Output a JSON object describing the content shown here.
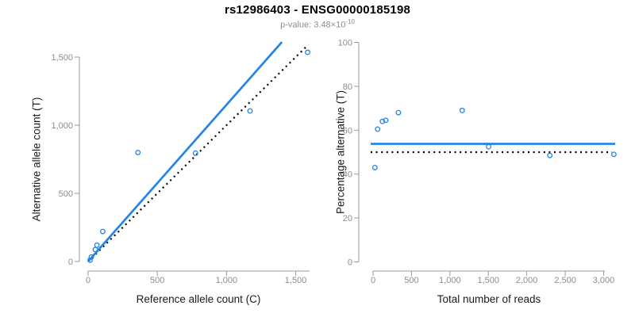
{
  "header": {
    "title": "rs12986403 - ENSG00000185198",
    "pvalue_label": "p-value: 3.48×10",
    "pvalue_exponent": "-10"
  },
  "colors": {
    "accent_blue": "#2585e6",
    "dotted_black": "#000000",
    "axis_gray": "#999999",
    "tick_label_gray": "#8c8c8c",
    "axis_title_dark": "#1a1a1a"
  },
  "chart_data": [
    {
      "type": "scatter",
      "panel": "left",
      "xlabel": "Reference allele count (C)",
      "ylabel": "Alternative allele count (T)",
      "xlim": [
        0,
        1600
      ],
      "ylim": [
        0,
        1600
      ],
      "xticks": [
        0,
        500,
        1000,
        1500
      ],
      "xtick_labels": [
        "0",
        "500",
        "1,000",
        "1,500"
      ],
      "yticks": [
        0,
        500,
        1000,
        1500
      ],
      "ytick_labels": [
        "0",
        "500",
        "1,000",
        "1,500"
      ],
      "grid": false,
      "legend": false,
      "points": [
        [
          14,
          10
        ],
        [
          23,
          33
        ],
        [
          52,
          88
        ],
        [
          64,
          120
        ],
        [
          106,
          220
        ],
        [
          360,
          800
        ],
        [
          776,
          795
        ],
        [
          1170,
          1105
        ],
        [
          1586,
          1535
        ]
      ],
      "lines": [
        {
          "name": "identity-line",
          "style": "dotted",
          "color_key": "dotted_black",
          "x1": 0,
          "y1": 0,
          "x2": 1590,
          "y2": 1590
        },
        {
          "name": "fit-line",
          "style": "solid",
          "color_key": "accent_blue",
          "x1": 0,
          "y1": 0,
          "x2": 1400,
          "y2": 1610
        }
      ]
    },
    {
      "type": "scatter",
      "panel": "right",
      "xlabel": "Total number of reads",
      "ylabel": "Percentage alternative (T)",
      "xlim": [
        0,
        3150
      ],
      "ylim": [
        0,
        100
      ],
      "xticks": [
        0,
        500,
        1000,
        1500,
        2000,
        2500,
        3000
      ],
      "xtick_labels": [
        "0",
        "500",
        "1,000",
        "1,500",
        "2,000",
        "2,500",
        "3,000"
      ],
      "yticks": [
        0,
        20,
        40,
        60,
        80,
        100
      ],
      "ytick_labels": [
        "0",
        "20",
        "40",
        "60",
        "80",
        "100"
      ],
      "grid": false,
      "legend": false,
      "points": [
        [
          24,
          43
        ],
        [
          59,
          60.5
        ],
        [
          121,
          64
        ],
        [
          165,
          64.5
        ],
        [
          330,
          68
        ],
        [
          1160,
          69
        ],
        [
          1503,
          52.5
        ],
        [
          2300,
          48.5
        ],
        [
          3133,
          49
        ]
      ],
      "lines": [
        {
          "name": "null-line",
          "style": "dotted",
          "color_key": "dotted_black",
          "y": 50
        },
        {
          "name": "fit-line",
          "style": "solid",
          "color_key": "accent_blue",
          "y": 53.8
        }
      ]
    }
  ]
}
